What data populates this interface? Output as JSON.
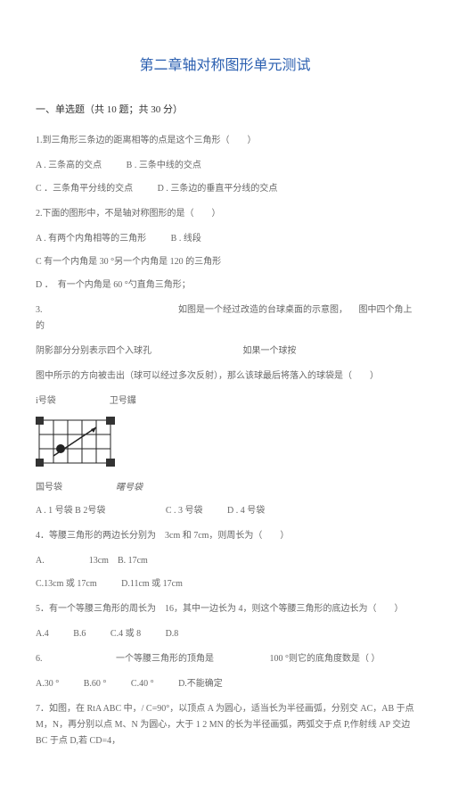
{
  "title": "第二章轴对称图形单元测试",
  "section1": "一、单选题（共 10 题；共 30 分）",
  "q1": {
    "text": "1.到三角形三条边的距离相等的点是这个三角形（　　）",
    "optA": "A . 三条高的交点",
    "optB": "B . 三条中线的交点",
    "optC": "C ．三条角平分线的交点",
    "optD": "D . 三条边的垂直平分线的交点"
  },
  "q2": {
    "text": "2.下面的图形中，不是轴对称图形的是（　　）",
    "optA": "A . 有两个内角相等的三角形",
    "optB": "B . 线段",
    "optC": "C 有一个内角是 30 °另一个内角是 120 的三角形",
    "optD": "D ．　有一个内角是 60 °勺直角三角形；"
  },
  "q3": {
    "text1": "3.",
    "text2": "如图是一个经过改造的台球桌面的示意图，",
    "text3": "图中四个角上的",
    "text4": "阴影部分分别表示四个入球孔",
    "text5": "如果一个球按",
    "text6": "图中所示的方向被击出（球可以经过多次反射），那么该球最后将落入的球袋是（　　）",
    "labelTop1": "i号袋",
    "labelTop2": "卫号鑼",
    "labelBot1": "国号袋",
    "labelBot2": "曙号袋",
    "optA": "A . 1 号袋 B 2号袋",
    "optC": "C . 3 号袋",
    "optD": "D . 4 号袋"
  },
  "q4": {
    "text": "4．等腰三角形的两边长分别为　3cm 和 7cm，则周长为（　　）",
    "optA": "A.　　　　　13cm　B. 17cm",
    "optC": "C.13cm 或 17cm",
    "optD": "D.11cm 或 17cm"
  },
  "q5": {
    "text": "5．有一个等腰三角形的周长为　16，其中一边长为 4，则这个等腰三角形的底边长为（　　）",
    "optA": "A.4",
    "optB": "B.6",
    "optC": "C.4 或 8",
    "optD": "D.8"
  },
  "q6": {
    "text1": "6.",
    "text2": "一个等腰三角形的顶角是",
    "text3": "100 °则它的底角度数是（ ）",
    "optA": "A.30 °",
    "optB": "B.60 °",
    "optC": "C.40 °",
    "optD": "D.不能确定"
  },
  "q7": {
    "text": "7．如图，在 RtA ABC 中，/ C=90°，以顶点 A 为圆心，适当长为半径画弧，分别交 AC，AB 于点 M，N，再分别以点 M、N 为圆心，大于 1 2 MN 的长为半径画弧，两弧交于点 P,作射线 AP 交边 BC 于点 D,若 CD=4，"
  },
  "diagram": {
    "cols": 5,
    "rows": 3,
    "cellSize": 16,
    "stroke": "#222",
    "corners": [
      "#333",
      "#333",
      "#333",
      "#333"
    ],
    "ballX": 24,
    "ballY": 32,
    "lineX1": 16,
    "lineY1": 40,
    "lineX2": 64,
    "lineY2": 8
  }
}
